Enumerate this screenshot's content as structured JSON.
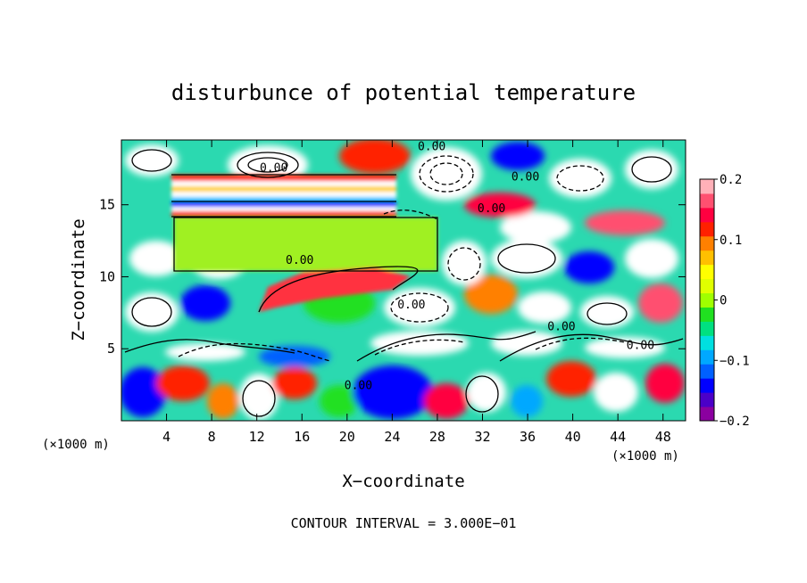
{
  "chart_data": {
    "type": "heatmap",
    "title": "disturbunce of potential temperature",
    "xlabel": "X−coordinate",
    "ylabel": "Z−coordinate",
    "x_unit_left": "(×1000 m)",
    "x_unit_right": "(×1000 m)",
    "xlim": [
      0,
      50
    ],
    "ylim": [
      0,
      19.5
    ],
    "x_ticks": [
      4,
      8,
      12,
      16,
      20,
      24,
      28,
      32,
      36,
      40,
      44,
      48
    ],
    "x_tick_labels": [
      "4",
      "8",
      "12",
      "16",
      "20",
      "24",
      "28",
      "32",
      "36",
      "40",
      "44",
      "48"
    ],
    "y_ticks": [
      5,
      10,
      15
    ],
    "y_tick_labels": [
      "5",
      "10",
      "15"
    ],
    "colorbar": {
      "min": -0.2,
      "max": 0.2,
      "ticks": [
        0.2,
        0.1,
        0,
        -0.1,
        -0.2
      ],
      "tick_labels": [
        "0.2",
        "0.1",
        "0",
        "−0.1",
        "−0.2"
      ],
      "colors": [
        "#8b00a0",
        "#4b00c8",
        "#0000ff",
        "#0060ff",
        "#00a8ff",
        "#00e0e0",
        "#00e080",
        "#20e020",
        "#a0ff00",
        "#e0ff00",
        "#ffff00",
        "#ffc000",
        "#ff8000",
        "#ff2000",
        "#ff0040",
        "#ff5070",
        "#ffb0b8"
      ]
    },
    "contour_labels": [
      {
        "text": "0.00",
        "x": 27.5,
        "z": 19.1
      },
      {
        "text": "0.00",
        "x": 13.5,
        "z": 17.6
      },
      {
        "text": "0.00",
        "x": 35.8,
        "z": 17.0
      },
      {
        "text": "0.00",
        "x": 32.8,
        "z": 14.8
      },
      {
        "text": "0.00",
        "x": 15.8,
        "z": 11.2
      },
      {
        "text": "0.00",
        "x": 25.7,
        "z": 8.1
      },
      {
        "text": "0.00",
        "x": 39.0,
        "z": 6.6
      },
      {
        "text": "0.00",
        "x": 46.0,
        "z": 5.3
      },
      {
        "text": "0.00",
        "x": 21.0,
        "z": 2.5
      }
    ],
    "footer": "CONTOUR INTERVAL = 3.000E−01"
  }
}
